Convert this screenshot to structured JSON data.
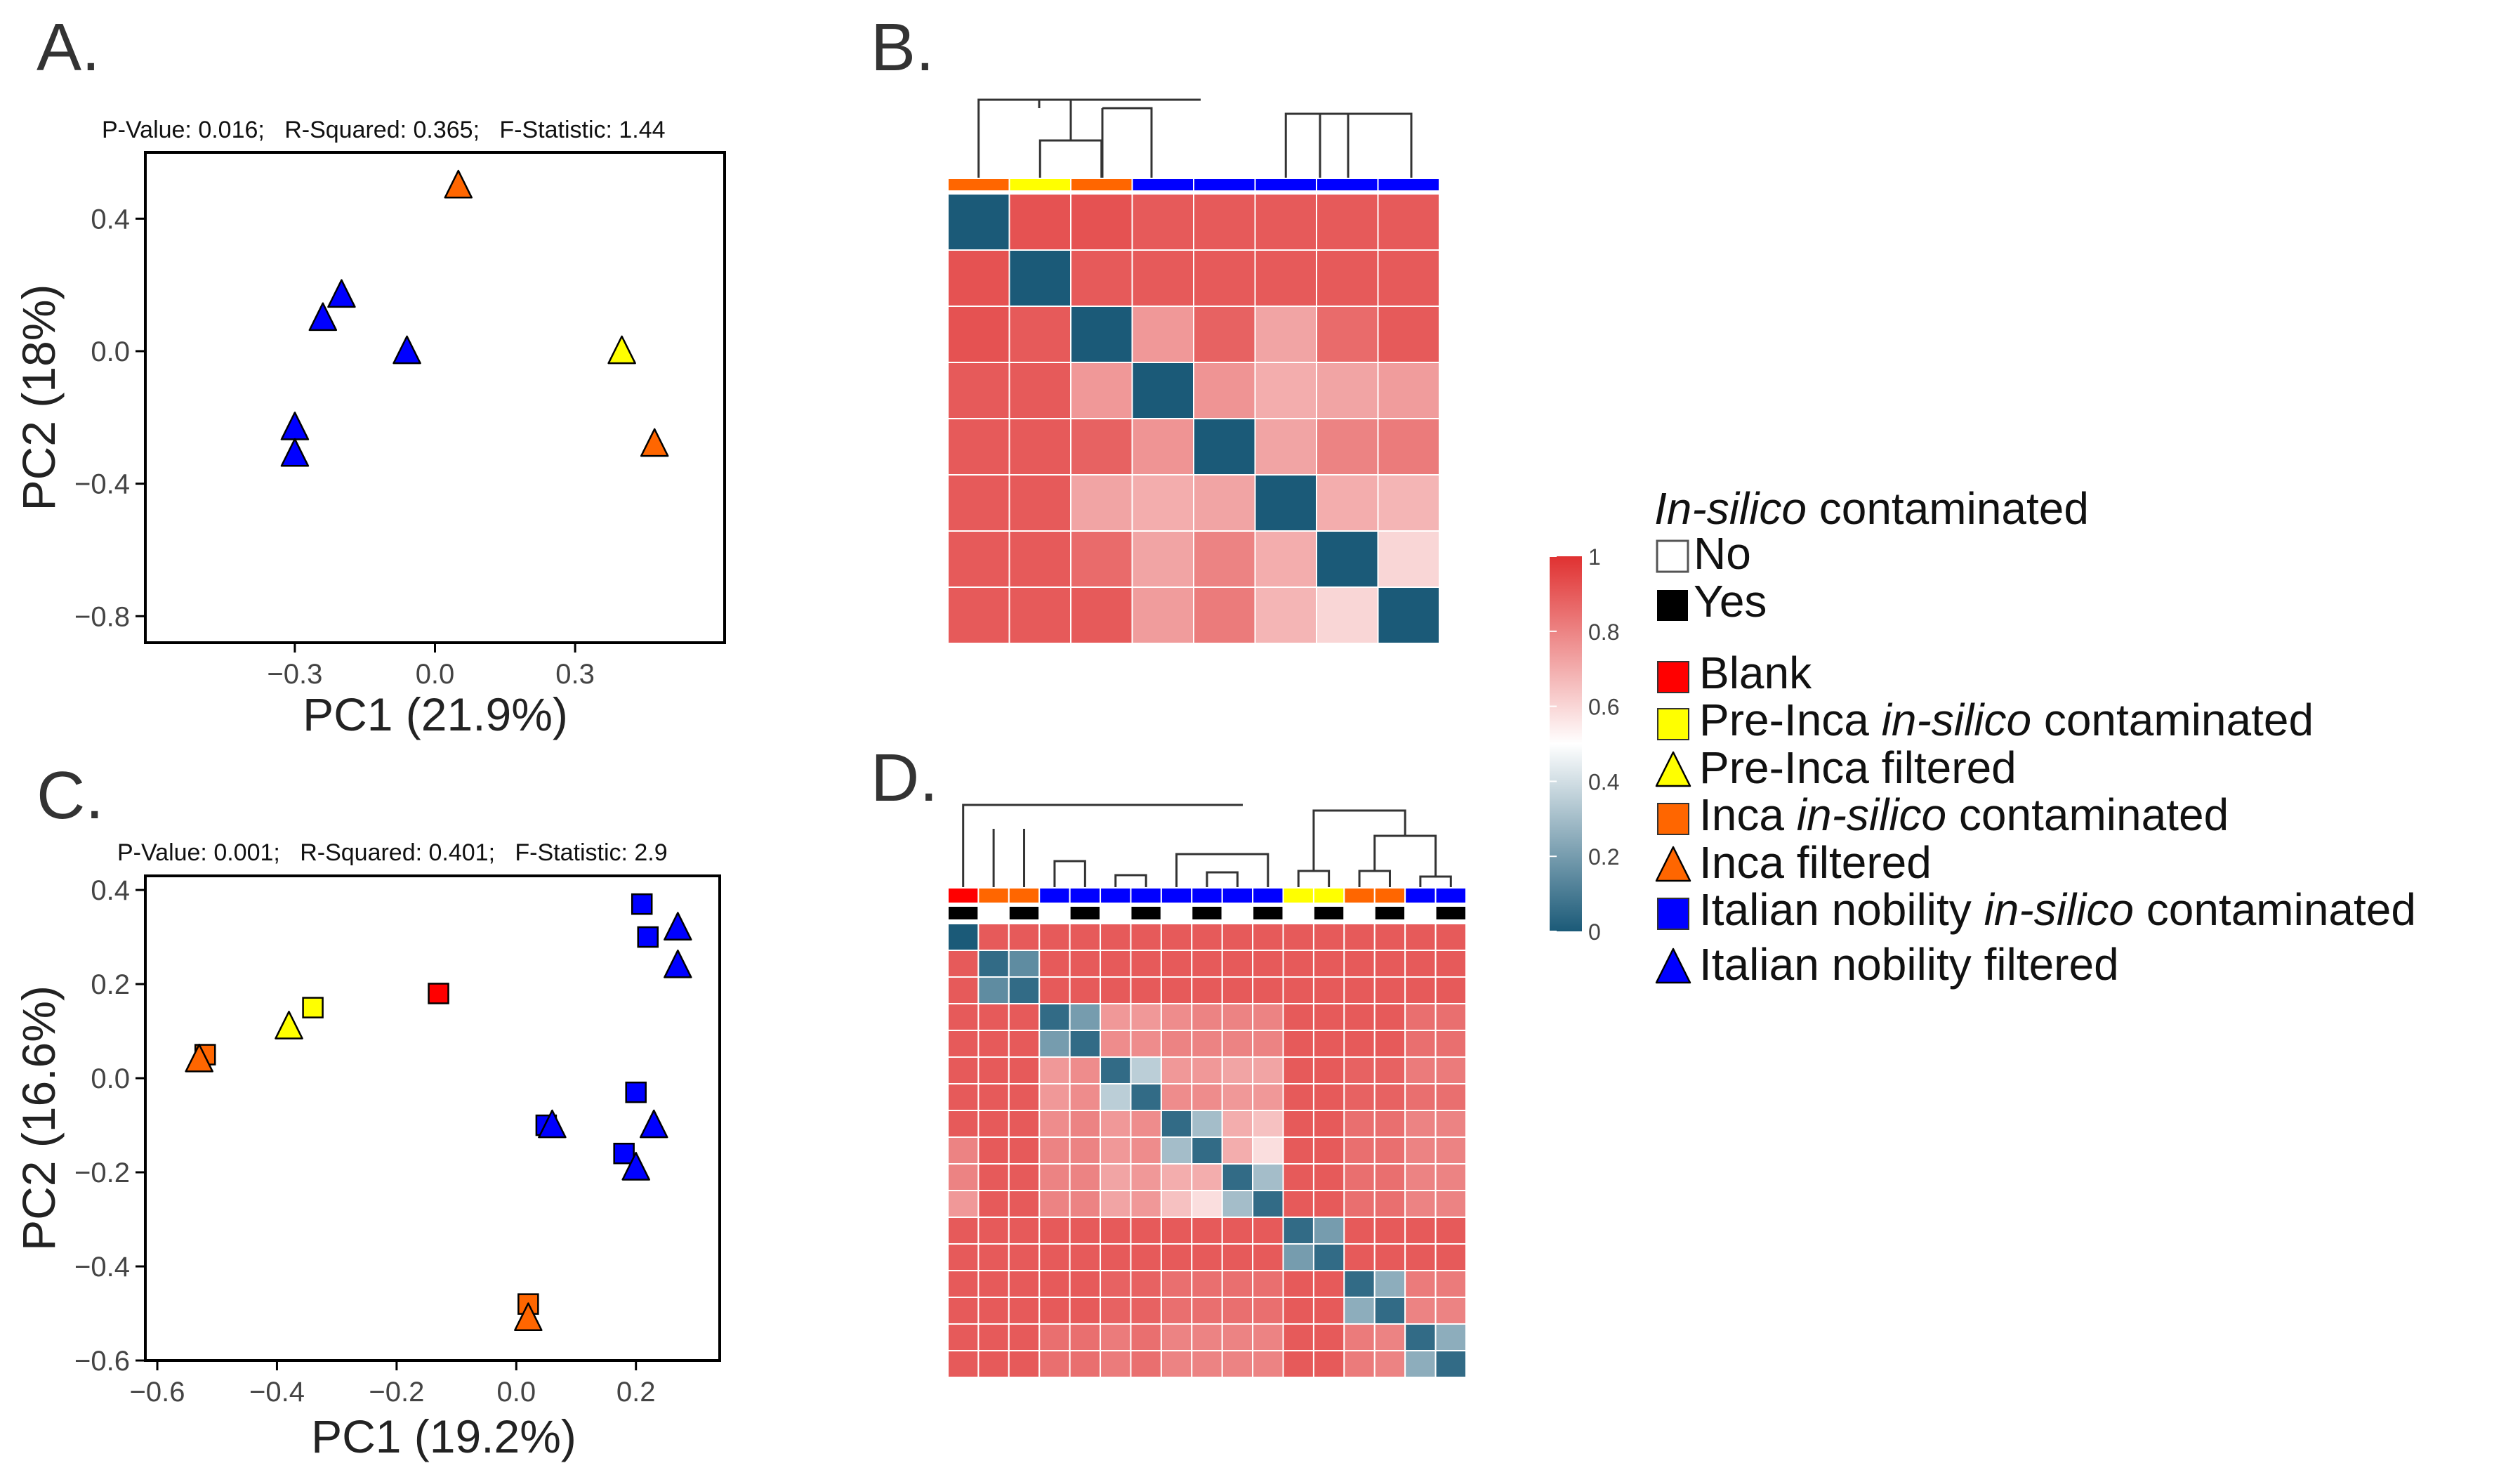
{
  "colors": {
    "blank": "#ff0000",
    "pre_inca": "#ffff00",
    "inca": "#ff6600",
    "italian": "#0000ff",
    "heat_high": "#e03131",
    "heat_low": "#1b5a78",
    "heat_mid": "#ffffff"
  },
  "panels": {
    "A": {
      "letter": "A."
    },
    "B": {
      "letter": "B."
    },
    "C": {
      "letter": "C."
    },
    "D": {
      "letter": "D."
    }
  },
  "legend": {
    "contam_title_italic": "In-silico",
    "contam_title_rest": " contaminated",
    "no_label": "No",
    "yes_label": "Yes",
    "items": [
      {
        "shape": "square",
        "color": "#ff0000",
        "parts": [
          [
            "Blank",
            false
          ]
        ]
      },
      {
        "shape": "square",
        "color": "#ffff00",
        "parts": [
          [
            "Pre-Inca ",
            false
          ],
          [
            "in-silico",
            true
          ],
          [
            " contaminated",
            false
          ]
        ]
      },
      {
        "shape": "triangle",
        "color": "#ffff00",
        "parts": [
          [
            "Pre-Inca filtered",
            false
          ]
        ]
      },
      {
        "shape": "square",
        "color": "#ff6600",
        "parts": [
          [
            "Inca ",
            false
          ],
          [
            "in-silico",
            true
          ],
          [
            " contaminated",
            false
          ]
        ]
      },
      {
        "shape": "triangle",
        "color": "#ff6600",
        "parts": [
          [
            "Inca filtered",
            false
          ]
        ]
      },
      {
        "shape": "square",
        "color": "#0000ff",
        "parts": [
          [
            "Italian nobility ",
            false
          ],
          [
            "in-silico",
            true
          ],
          [
            " contaminated",
            false
          ]
        ]
      },
      {
        "shape": "triangle",
        "color": "#0000ff",
        "parts": [
          [
            "Italian nobility filtered",
            false
          ]
        ]
      }
    ],
    "colorbar": {
      "ticks": [
        "1",
        "0.8",
        "0.6",
        "0.4",
        "0.2",
        "0"
      ]
    }
  },
  "chart_data": [
    {
      "id": "A",
      "type": "scatter",
      "stats": "P-Value: 0.016;   R-Squared: 0.365;   F-Statistic: 1.44",
      "xlabel": "PC1 (21.9%)",
      "ylabel": "PC2 (18%)",
      "xlim": [
        -0.62,
        0.62
      ],
      "ylim": [
        -0.88,
        0.6
      ],
      "xticks": [
        -0.3,
        0.0,
        0.3
      ],
      "xticklabels": [
        "−0.3",
        "0.0",
        "0.3"
      ],
      "yticks": [
        0.4,
        0.0,
        -0.4,
        -0.8
      ],
      "yticklabels": [
        "0.4",
        "0.0",
        "−0.4",
        "−0.8"
      ],
      "points": [
        {
          "x": 0.05,
          "y": 0.5,
          "shape": "triangle",
          "group": "inca"
        },
        {
          "x": 0.47,
          "y": -0.28,
          "shape": "triangle",
          "group": "inca"
        },
        {
          "x": 0.4,
          "y": 0.0,
          "shape": "triangle",
          "group": "pre_inca"
        },
        {
          "x": -0.2,
          "y": 0.17,
          "shape": "triangle",
          "group": "italian"
        },
        {
          "x": -0.24,
          "y": 0.1,
          "shape": "triangle",
          "group": "italian"
        },
        {
          "x": -0.06,
          "y": 0.0,
          "shape": "triangle",
          "group": "italian"
        },
        {
          "x": -0.3,
          "y": -0.23,
          "shape": "triangle",
          "group": "italian"
        },
        {
          "x": -0.3,
          "y": -0.31,
          "shape": "triangle",
          "group": "italian"
        }
      ]
    },
    {
      "id": "C",
      "type": "scatter",
      "stats": "P-Value: 0.001;   R-Squared: 0.401;   F-Statistic: 2.9",
      "xlabel": "PC1 (19.2%)",
      "ylabel": "PC2 (16.6%)",
      "xlim": [
        -0.62,
        0.34
      ],
      "ylim": [
        -0.6,
        0.43
      ],
      "xticks": [
        -0.6,
        -0.4,
        -0.2,
        0.0,
        0.2
      ],
      "xticklabels": [
        "−0.6",
        "−0.4",
        "−0.2",
        "0.0",
        "0.2"
      ],
      "yticks": [
        0.4,
        0.2,
        0.0,
        -0.2,
        -0.4,
        -0.6
      ],
      "yticklabels": [
        "0.4",
        "0.2",
        "0.0",
        "−0.2",
        "−0.4",
        "−0.6"
      ],
      "points": [
        {
          "x": -0.13,
          "y": 0.18,
          "shape": "square",
          "group": "blank"
        },
        {
          "x": -0.34,
          "y": 0.15,
          "shape": "square",
          "group": "pre_inca"
        },
        {
          "x": -0.38,
          "y": 0.11,
          "shape": "triangle",
          "group": "pre_inca"
        },
        {
          "x": -0.52,
          "y": 0.05,
          "shape": "square",
          "group": "inca"
        },
        {
          "x": -0.53,
          "y": 0.04,
          "shape": "triangle",
          "group": "inca"
        },
        {
          "x": 0.02,
          "y": -0.48,
          "shape": "square",
          "group": "inca"
        },
        {
          "x": 0.02,
          "y": -0.51,
          "shape": "triangle",
          "group": "inca"
        },
        {
          "x": 0.21,
          "y": 0.37,
          "shape": "square",
          "group": "italian"
        },
        {
          "x": 0.22,
          "y": 0.3,
          "shape": "square",
          "group": "italian"
        },
        {
          "x": 0.27,
          "y": 0.32,
          "shape": "triangle",
          "group": "italian"
        },
        {
          "x": 0.27,
          "y": 0.24,
          "shape": "triangle",
          "group": "italian"
        },
        {
          "x": 0.2,
          "y": -0.03,
          "shape": "square",
          "group": "italian"
        },
        {
          "x": 0.05,
          "y": -0.1,
          "shape": "square",
          "group": "italian"
        },
        {
          "x": 0.06,
          "y": -0.1,
          "shape": "triangle",
          "group": "italian"
        },
        {
          "x": 0.23,
          "y": -0.1,
          "shape": "triangle",
          "group": "italian"
        },
        {
          "x": 0.18,
          "y": -0.16,
          "shape": "square",
          "group": "italian"
        },
        {
          "x": 0.2,
          "y": -0.19,
          "shape": "triangle",
          "group": "italian"
        }
      ]
    },
    {
      "id": "B",
      "type": "heatmap",
      "col_groups": [
        "inca",
        "pre_inca",
        "inca",
        "italian",
        "italian",
        "italian",
        "italian",
        "italian"
      ],
      "matrix": [
        [
          0.0,
          0.92,
          0.92,
          0.9,
          0.9,
          0.9,
          0.9,
          0.9
        ],
        [
          0.92,
          0.0,
          0.9,
          0.9,
          0.9,
          0.9,
          0.9,
          0.9
        ],
        [
          0.92,
          0.9,
          0.0,
          0.75,
          0.88,
          0.72,
          0.86,
          0.9
        ],
        [
          0.9,
          0.9,
          0.75,
          0.0,
          0.76,
          0.7,
          0.72,
          0.74
        ],
        [
          0.9,
          0.9,
          0.88,
          0.76,
          0.0,
          0.72,
          0.8,
          0.82
        ],
        [
          0.9,
          0.9,
          0.72,
          0.7,
          0.72,
          0.0,
          0.7,
          0.68
        ],
        [
          0.9,
          0.9,
          0.86,
          0.72,
          0.8,
          0.7,
          0.0,
          0.6
        ],
        [
          0.9,
          0.9,
          0.9,
          0.74,
          0.82,
          0.68,
          0.6,
          0.0
        ]
      ]
    },
    {
      "id": "D",
      "type": "heatmap",
      "col_groups": [
        "blank",
        "inca",
        "inca",
        "italian",
        "italian",
        "italian",
        "italian",
        "italian",
        "italian",
        "italian",
        "italian",
        "pre_inca",
        "pre_inca",
        "inca",
        "inca",
        "italian",
        "italian"
      ],
      "col_contaminated": [
        1,
        0,
        1,
        0,
        1,
        0,
        1,
        0,
        1,
        0,
        1,
        0,
        1,
        0,
        1,
        0,
        1
      ],
      "matrix": [
        [
          0.0,
          0.9,
          0.9,
          0.9,
          0.9,
          0.9,
          0.9,
          0.9,
          0.9,
          0.9,
          0.9,
          0.9,
          0.9,
          0.9,
          0.9,
          0.9,
          0.9
        ],
        [
          0.9,
          0.05,
          0.15,
          0.9,
          0.9,
          0.9,
          0.9,
          0.9,
          0.9,
          0.9,
          0.9,
          0.9,
          0.9,
          0.9,
          0.9,
          0.9,
          0.9
        ],
        [
          0.9,
          0.15,
          0.05,
          0.9,
          0.9,
          0.9,
          0.9,
          0.9,
          0.9,
          0.9,
          0.9,
          0.9,
          0.9,
          0.9,
          0.9,
          0.9,
          0.9
        ],
        [
          0.9,
          0.9,
          0.9,
          0.05,
          0.2,
          0.75,
          0.75,
          0.78,
          0.8,
          0.8,
          0.8,
          0.9,
          0.9,
          0.9,
          0.9,
          0.85,
          0.85
        ],
        [
          0.9,
          0.9,
          0.9,
          0.2,
          0.05,
          0.78,
          0.78,
          0.8,
          0.8,
          0.8,
          0.8,
          0.9,
          0.9,
          0.9,
          0.9,
          0.85,
          0.85
        ],
        [
          0.9,
          0.9,
          0.9,
          0.75,
          0.78,
          0.05,
          0.35,
          0.75,
          0.75,
          0.72,
          0.72,
          0.9,
          0.9,
          0.88,
          0.88,
          0.82,
          0.82
        ],
        [
          0.9,
          0.9,
          0.9,
          0.75,
          0.78,
          0.35,
          0.05,
          0.78,
          0.78,
          0.75,
          0.75,
          0.9,
          0.9,
          0.88,
          0.88,
          0.85,
          0.85
        ],
        [
          0.9,
          0.9,
          0.9,
          0.78,
          0.8,
          0.75,
          0.78,
          0.05,
          0.3,
          0.7,
          0.65,
          0.9,
          0.9,
          0.85,
          0.85,
          0.8,
          0.8
        ],
        [
          0.8,
          0.9,
          0.9,
          0.8,
          0.8,
          0.75,
          0.78,
          0.3,
          0.05,
          0.7,
          0.58,
          0.9,
          0.9,
          0.85,
          0.85,
          0.8,
          0.8
        ],
        [
          0.8,
          0.9,
          0.9,
          0.8,
          0.8,
          0.72,
          0.75,
          0.7,
          0.7,
          0.05,
          0.3,
          0.9,
          0.9,
          0.85,
          0.85,
          0.8,
          0.8
        ],
        [
          0.75,
          0.9,
          0.9,
          0.8,
          0.8,
          0.72,
          0.75,
          0.65,
          0.58,
          0.3,
          0.05,
          0.9,
          0.9,
          0.85,
          0.85,
          0.8,
          0.8
        ],
        [
          0.9,
          0.9,
          0.9,
          0.9,
          0.9,
          0.9,
          0.9,
          0.9,
          0.9,
          0.9,
          0.9,
          0.05,
          0.2,
          0.9,
          0.9,
          0.9,
          0.9
        ],
        [
          0.9,
          0.9,
          0.9,
          0.9,
          0.9,
          0.9,
          0.9,
          0.9,
          0.9,
          0.9,
          0.9,
          0.2,
          0.05,
          0.9,
          0.9,
          0.9,
          0.9
        ],
        [
          0.9,
          0.9,
          0.9,
          0.9,
          0.9,
          0.88,
          0.88,
          0.85,
          0.85,
          0.85,
          0.85,
          0.9,
          0.9,
          0.05,
          0.25,
          0.82,
          0.82
        ],
        [
          0.9,
          0.9,
          0.9,
          0.9,
          0.9,
          0.88,
          0.88,
          0.85,
          0.85,
          0.85,
          0.85,
          0.9,
          0.9,
          0.25,
          0.05,
          0.8,
          0.8
        ],
        [
          0.9,
          0.9,
          0.9,
          0.85,
          0.85,
          0.82,
          0.85,
          0.8,
          0.8,
          0.8,
          0.8,
          0.9,
          0.9,
          0.82,
          0.8,
          0.05,
          0.25
        ],
        [
          0.9,
          0.9,
          0.9,
          0.85,
          0.85,
          0.82,
          0.85,
          0.8,
          0.8,
          0.8,
          0.8,
          0.9,
          0.9,
          0.82,
          0.8,
          0.25,
          0.05
        ]
      ]
    }
  ]
}
